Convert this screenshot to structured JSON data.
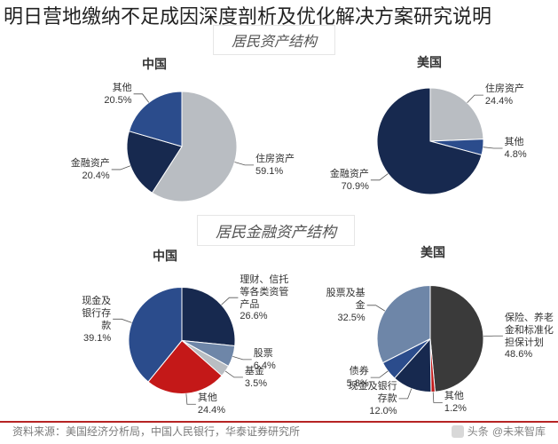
{
  "overlay_title": "明日营地缴纳不足成因深度剖析及优化解决方案研究说明",
  "section_titles": {
    "top": "居民资产结构",
    "bottom": "居民金融资产结构"
  },
  "countries": {
    "cn": "中国",
    "us": "美国"
  },
  "style": {
    "background": "#ffffff",
    "title_fontsize": 22,
    "section_title_fontsize": 16,
    "section_title_color": "#555555",
    "section_border_color": "#e6e6e6",
    "country_label_fontsize": 14,
    "slice_label_fontsize": 11,
    "slice_label_color": "#333333",
    "leader_color": "#555555",
    "source_color": "#7a7a7a",
    "divider_color": "#b62424"
  },
  "charts": {
    "top_left": {
      "country": "cn",
      "type": "pie",
      "radius": 62,
      "start_angle": -90,
      "slices": [
        {
          "name": "住房资产",
          "value": 59.1,
          "color": "#b9bdc2"
        },
        {
          "name": "金融资产",
          "value": 20.4,
          "color": "#17294f"
        },
        {
          "name": "其他",
          "value": 20.5,
          "color": "#2b4c8c"
        }
      ]
    },
    "top_right": {
      "country": "us",
      "type": "pie",
      "radius": 60,
      "start_angle": -90,
      "slices": [
        {
          "name": "住房资产",
          "value": 24.4,
          "color": "#b9bdc2"
        },
        {
          "name": "其他",
          "value": 4.8,
          "color": "#2b4c8c"
        },
        {
          "name": "金融资产",
          "value": 70.9,
          "color": "#17294f"
        }
      ]
    },
    "bottom_left": {
      "country": "cn",
      "type": "pie",
      "radius": 60,
      "start_angle": -90,
      "slices": [
        {
          "name": "理财、信托\n等各类资管\n产品",
          "value": 26.6,
          "color": "#17294f"
        },
        {
          "name": "股票",
          "value": 6.4,
          "color": "#6e86a8"
        },
        {
          "name": "基金",
          "value": 3.5,
          "color": "#b9bdc2"
        },
        {
          "name": "其他",
          "value": 24.4,
          "color": "#c41818"
        },
        {
          "name": "现金及\n银行存\n款",
          "value": 39.1,
          "color": "#2b4c8c"
        }
      ]
    },
    "bottom_right": {
      "country": "us",
      "type": "pie",
      "radius": 60,
      "start_angle": -90,
      "slices": [
        {
          "name": "保险、养老\n金和标准化\n担保计划",
          "value": 48.6,
          "color": "#3a3a3a"
        },
        {
          "name": "其他",
          "value": 1.2,
          "color": "#c41818"
        },
        {
          "name": "现金及银行\n存款",
          "value": 12.0,
          "color": "#17294f"
        },
        {
          "name": "债券",
          "value": 5.8,
          "color": "#2b4c8c"
        },
        {
          "name": "股票及基\n金",
          "value": 32.5,
          "color": "#6e86a8"
        }
      ]
    }
  },
  "source_line": "资料来源：美国经济分析局，中国人民银行，华泰证券研究所",
  "toutiao": {
    "prefix": "头条",
    "account": "@未来智库"
  }
}
